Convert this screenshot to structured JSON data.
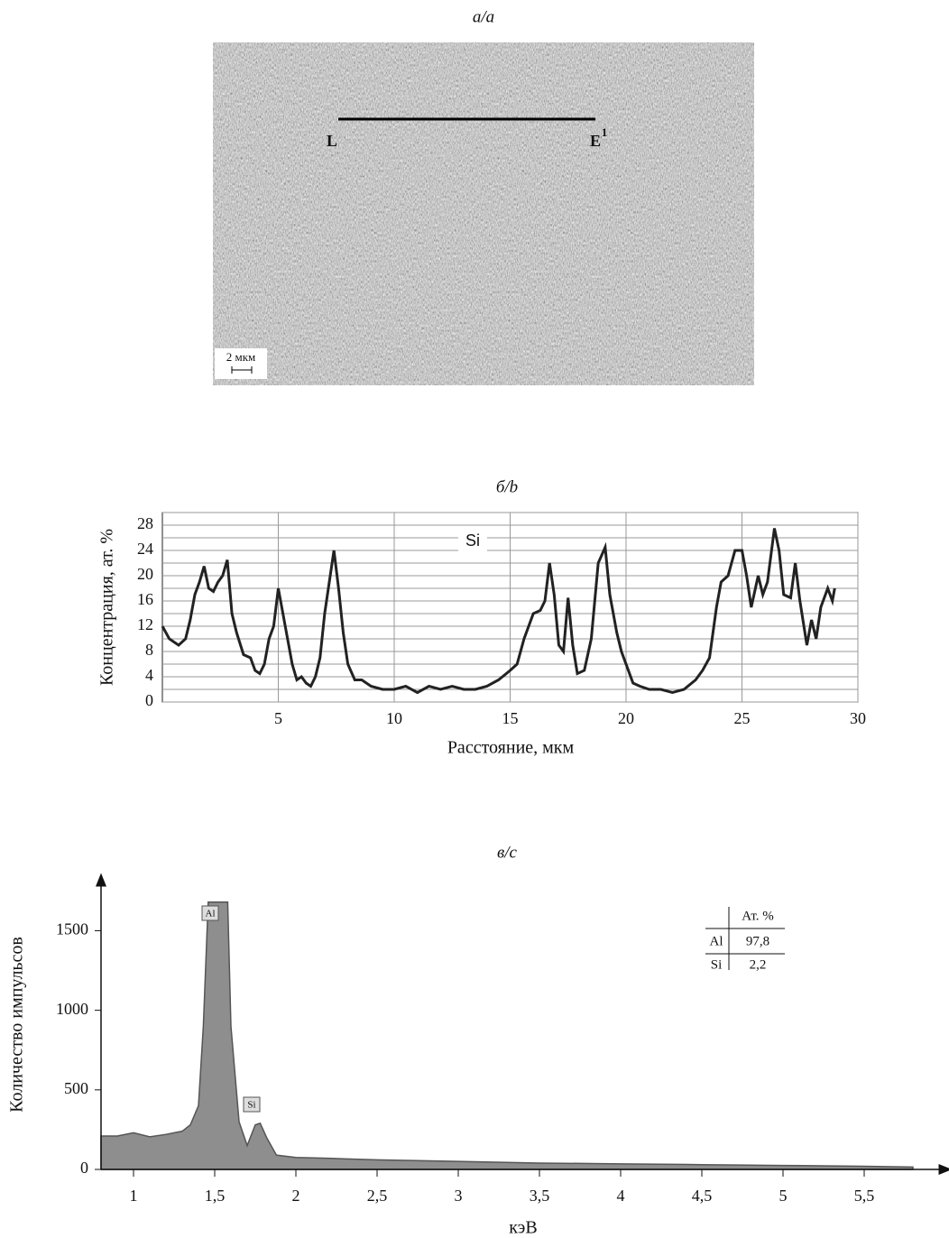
{
  "micrograph": {
    "caption": "а/a",
    "line_start_label": "L",
    "line_end_label": "E",
    "line_end_superscript": "1",
    "scale_bar": "2 мкм"
  },
  "chart_data": [
    {
      "type": "line",
      "caption": "б/b",
      "xlabel": "Расстояние, мкм",
      "ylabel": "Концентрация, ат. %",
      "annotations": [
        "Si"
      ],
      "xlim": [
        0,
        30
      ],
      "xticks": [
        5,
        10,
        15,
        20,
        25,
        30
      ],
      "ylim": [
        0,
        30
      ],
      "yticks": [
        0,
        4,
        8,
        12,
        16,
        20,
        24,
        28
      ],
      "yminorticks": [
        2,
        6,
        10,
        14,
        18,
        22,
        26,
        30
      ],
      "grid": true,
      "series": [
        {
          "color": "#222222",
          "x": [
            0,
            0.3,
            0.7,
            1.0,
            1.2,
            1.4,
            1.6,
            1.8,
            2.0,
            2.2,
            2.4,
            2.6,
            2.8,
            3.0,
            3.2,
            3.5,
            3.8,
            4.0,
            4.2,
            4.4,
            4.6,
            4.8,
            5.0,
            5.2,
            5.4,
            5.6,
            5.8,
            6.0,
            6.2,
            6.4,
            6.6,
            6.8,
            7.0,
            7.2,
            7.4,
            7.6,
            7.8,
            8.0,
            8.3,
            8.6,
            9.0,
            9.5,
            10,
            10.5,
            11,
            11.5,
            12,
            12.5,
            13,
            13.5,
            14,
            14.5,
            15,
            15.3,
            15.6,
            16.0,
            16.3,
            16.5,
            16.7,
            16.9,
            17.1,
            17.3,
            17.5,
            17.7,
            17.9,
            18.2,
            18.5,
            18.8,
            19.1,
            19.3,
            19.6,
            19.8,
            20.0,
            20.3,
            20.6,
            21,
            21.5,
            22,
            22.5,
            23,
            23.3,
            23.6,
            23.9,
            24.1,
            24.4,
            24.7,
            25.0,
            25.2,
            25.4,
            25.7,
            25.9,
            26.1,
            26.4,
            26.6,
            26.8,
            27.1,
            27.3,
            27.5,
            27.8,
            28.0,
            28.2,
            28.4,
            28.7,
            28.9,
            29.0
          ],
          "values": [
            12,
            10,
            9,
            10,
            13,
            17,
            19,
            21.5,
            18,
            17.5,
            19,
            20,
            22.5,
            14,
            11,
            7.5,
            7,
            5,
            4.5,
            6,
            10,
            12,
            18,
            14,
            10,
            6,
            3.5,
            4,
            3,
            2.5,
            4,
            7,
            14,
            19,
            24,
            18,
            11,
            6,
            3.5,
            3.5,
            2.5,
            2,
            2,
            2.5,
            1.5,
            2.5,
            2,
            2.5,
            2,
            2,
            2.5,
            3.5,
            5,
            6,
            10,
            14,
            14.5,
            16,
            22,
            17,
            9,
            8,
            16.5,
            9,
            4.5,
            5,
            10,
            22,
            24.5,
            17,
            11,
            8,
            6,
            3,
            2.5,
            2,
            2,
            1.5,
            2,
            3.5,
            5,
            7,
            15,
            19,
            20,
            24,
            24,
            20,
            15,
            20,
            17,
            19,
            27.5,
            24,
            17,
            16.5,
            22,
            16,
            9,
            13,
            10,
            15,
            18,
            16,
            18
          ]
        }
      ]
    },
    {
      "type": "area",
      "caption": "в/c",
      "xlabel": "кэВ",
      "ylabel": "Количество импульсов",
      "peak_labels": [
        "Al",
        "Si"
      ],
      "table": {
        "header": "Ат. %",
        "rows": [
          [
            "Al",
            "97,8"
          ],
          [
            "Si",
            "2,2"
          ]
        ]
      },
      "xlim": [
        0.8,
        6.0
      ],
      "xticks": [
        1,
        {
          "value": 1.5,
          "label": "1,5"
        },
        2,
        {
          "value": 2.5,
          "label": "2,5"
        },
        3,
        {
          "value": 3.5,
          "label": "3,5"
        },
        4,
        {
          "value": 4.5,
          "label": "4,5"
        },
        5,
        {
          "value": 5.5,
          "label": "5,5"
        }
      ],
      "ylim": [
        0,
        1820
      ],
      "yticks": [
        0,
        500,
        1000,
        1500
      ],
      "series": [
        {
          "color": "#8e8e8e",
          "x": [
            0.8,
            0.9,
            1.0,
            1.1,
            1.2,
            1.3,
            1.35,
            1.4,
            1.43,
            1.46,
            1.5,
            1.55,
            1.58,
            1.6,
            1.65,
            1.7,
            1.75,
            1.78,
            1.82,
            1.88,
            2.0,
            2.2,
            2.5,
            3.0,
            3.5,
            4.0,
            4.5,
            5.0,
            5.5,
            5.8
          ],
          "values": [
            210,
            210,
            230,
            205,
            220,
            240,
            280,
            400,
            900,
            1680,
            1680,
            1680,
            1680,
            900,
            300,
            150,
            280,
            290,
            200,
            90,
            75,
            70,
            60,
            50,
            40,
            35,
            30,
            25,
            20,
            15
          ]
        }
      ]
    }
  ]
}
